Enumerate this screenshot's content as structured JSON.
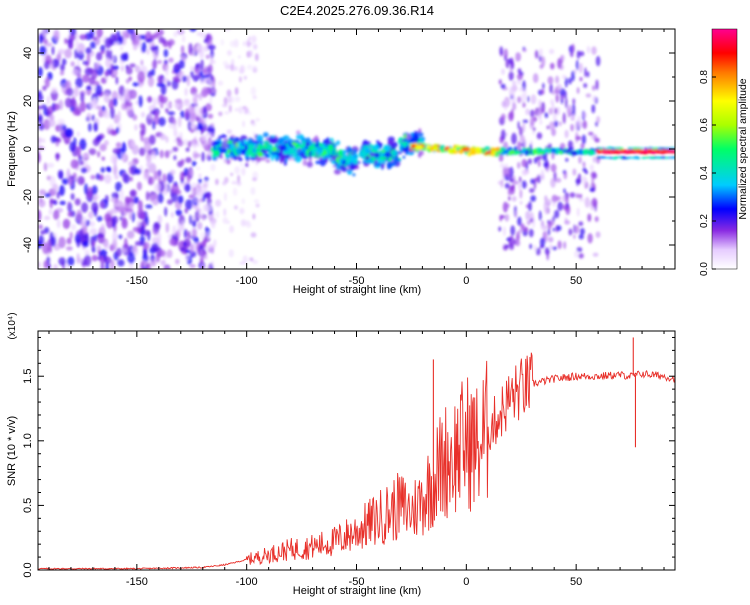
{
  "title": "C2E4.2025.276.09.36.R14",
  "chart_data": [
    {
      "type": "heatmap",
      "xlabel": "Height of straight line (km)",
      "ylabel": "Frequency (Hz)",
      "xlim": [
        -195,
        95
      ],
      "ylim": [
        -50,
        50
      ],
      "xticks": [
        -150,
        -100,
        -50,
        0,
        50
      ],
      "yticks": [
        -40,
        -20,
        0,
        20,
        40
      ],
      "grid": false,
      "colorbar": {
        "label": "Normalized spectral amplitude",
        "range": [
          0,
          1
        ],
        "ticks": [
          "0.0",
          "0.2",
          "0.4",
          "0.6",
          "0.8"
        ],
        "colormap": "rainbow (white-violet-blue-cyan-green-yellow-red-magenta)"
      },
      "regions": [
        {
          "x_range": [
            -195,
            -115
          ],
          "description": "broadband noise, amplitude ~0.1-0.25",
          "freq_range": [
            -50,
            50
          ]
        },
        {
          "x_range": [
            -115,
            -20
          ],
          "description": "band centered near 0 Hz, width ~+/-8 Hz, amplitude ~0.2-0.5",
          "freq_range": [
            -12,
            8
          ]
        },
        {
          "x_range": [
            -20,
            15
          ],
          "description": "narrow line near 0 Hz, amplitude ~0.5-1.0",
          "freq_range": [
            -3,
            3
          ]
        },
        {
          "x_range": [
            15,
            60
          ],
          "description": "line near 0 Hz with broadband noise",
          "freq_range": [
            -45,
            40
          ]
        },
        {
          "x_range": [
            60,
            95
          ],
          "description": "strong narrow line at ~-1 Hz, amplitude ~1.0",
          "freq_range": [
            -3,
            1
          ]
        }
      ]
    },
    {
      "type": "line",
      "xlabel": "Height of straight line (km)",
      "ylabel": "SNR (10 * v/v)",
      "y_multiplier": "(x10⁴)",
      "xlim": [
        -195,
        95
      ],
      "ylim": [
        0,
        1.85
      ],
      "xticks": [
        -150,
        -100,
        -50,
        0,
        50
      ],
      "yticks": [
        "0.0",
        "0.5",
        "1.0",
        "1.5"
      ],
      "grid": false,
      "series": [
        {
          "color": "#e8302a",
          "x": [
            -195,
            -150,
            -120,
            -110,
            -100,
            -90,
            -80,
            -70,
            -60,
            -50,
            -40,
            -30,
            -25,
            -20,
            -15,
            -10,
            -5,
            0,
            5,
            10,
            15,
            20,
            25,
            30,
            40,
            50,
            60,
            70,
            75,
            80,
            90,
            95
          ],
          "y": [
            0.01,
            0.01,
            0.02,
            0.04,
            0.08,
            0.12,
            0.16,
            0.18,
            0.22,
            0.3,
            0.4,
            0.5,
            0.45,
            0.55,
            0.7,
            0.85,
            0.9,
            1.0,
            0.95,
            1.08,
            1.2,
            1.33,
            1.4,
            1.44,
            1.48,
            1.5,
            1.5,
            1.51,
            1.5,
            1.52,
            1.5,
            1.48
          ]
        }
      ],
      "spikes": [
        {
          "x": -15,
          "y": 1.63
        },
        {
          "x": 76,
          "y": 1.8
        },
        {
          "x": 77,
          "y": 0.95
        }
      ]
    }
  ]
}
